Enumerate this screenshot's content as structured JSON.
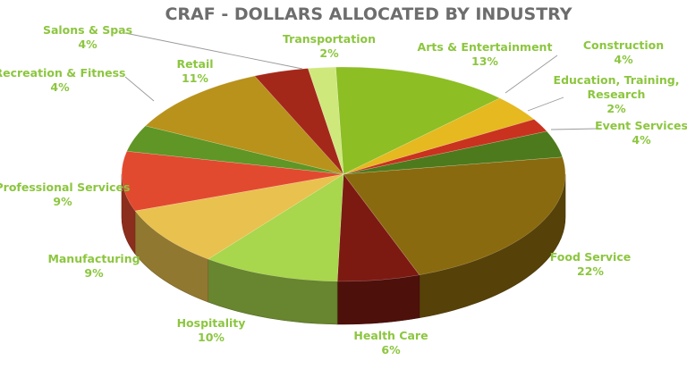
{
  "chart_data": {
    "type": "pie",
    "title": "CRAF - DOLLARS ALLOCATED BY INDUSTRY",
    "three_d": true,
    "label_color": "#8cc63f",
    "slices": [
      {
        "label": "Arts & Entertainment",
        "lines": [
          "Arts & Entertainment"
        ],
        "value": 13,
        "value_text": "13%",
        "color": "#8dbe24"
      },
      {
        "label": "Construction",
        "lines": [
          "Construction"
        ],
        "value": 4,
        "value_text": "4%",
        "color": "#e5b91f"
      },
      {
        "label": "Education, Training, Research",
        "lines": [
          "Education, Training,",
          "Research"
        ],
        "value": 2,
        "value_text": "2%",
        "color": "#c9321e"
      },
      {
        "label": "Event Services",
        "lines": [
          "Event Services"
        ],
        "value": 4,
        "value_text": "4%",
        "color": "#4d7a1c"
      },
      {
        "label": "Food Service",
        "lines": [
          "Food Service"
        ],
        "value": 22,
        "value_text": "22%",
        "color": "#8a6a0e"
      },
      {
        "label": "Health Care",
        "lines": [
          "Health Care"
        ],
        "value": 6,
        "value_text": "6%",
        "color": "#7c1a12"
      },
      {
        "label": "Hospitality",
        "lines": [
          "Hospitality"
        ],
        "value": 10,
        "value_text": "10%",
        "color": "#a8d64c"
      },
      {
        "label": "Manufacturing",
        "lines": [
          "Manufacturing"
        ],
        "value": 9,
        "value_text": "9%",
        "color": "#e9c14f"
      },
      {
        "label": "Professional Services",
        "lines": [
          "Professional Services"
        ],
        "value": 9,
        "value_text": "9%",
        "color": "#e24a2f"
      },
      {
        "label": "Recreation & Fitness",
        "lines": [
          "Recreation & Fitness"
        ],
        "value": 4,
        "value_text": "4%",
        "color": "#5f9626"
      },
      {
        "label": "Retail",
        "lines": [
          "Retail"
        ],
        "value": 11,
        "value_text": "11%",
        "color": "#b8921a"
      },
      {
        "label": "Salons & Spas",
        "lines": [
          "Salons & Spas"
        ],
        "value": 4,
        "value_text": "4%",
        "color": "#a4281a"
      },
      {
        "label": "Transportation",
        "lines": [
          "Transportation"
        ],
        "value": 2,
        "value_text": "2%",
        "color": "#cfe87c"
      }
    ]
  }
}
